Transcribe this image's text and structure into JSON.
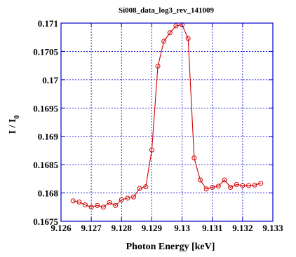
{
  "chart_data": {
    "type": "line",
    "title": "Si008_data_log3_rev_141009",
    "xlabel": "Photon Energy [keV]",
    "ylabel_main": "I / I",
    "ylabel_sub": "0",
    "xlim": [
      9.126,
      9.133
    ],
    "ylim": [
      0.1675,
      0.171
    ],
    "x_ticks": [
      "9.126",
      "9.127",
      "9.128",
      "9.129",
      "9.13",
      "9.131",
      "9.132",
      "9.133"
    ],
    "y_ticks": [
      "0.1675",
      "0.168",
      "0.1685",
      "0.169",
      "0.1695",
      "0.17",
      "0.1705",
      "0.171"
    ],
    "grid": true,
    "series": [
      {
        "color": "#d00000",
        "marker": "circle",
        "x": [
          9.1264,
          9.1266,
          9.1268,
          9.127,
          9.1272,
          9.1274,
          9.1276,
          9.1278,
          9.128,
          9.1282,
          9.1284,
          9.1286,
          9.1288,
          9.129,
          9.1292,
          9.1294,
          9.1296,
          9.1298,
          9.13,
          9.1302,
          9.1304,
          9.1306,
          9.1308,
          9.131,
          9.1312,
          9.1314,
          9.1316,
          9.1318,
          9.132,
          9.1322,
          9.1324,
          9.1326
        ],
        "y": [
          0.16786,
          0.16784,
          0.16779,
          0.16775,
          0.16778,
          0.16775,
          0.16783,
          0.16778,
          0.16788,
          0.16791,
          0.16793,
          0.16808,
          0.16811,
          0.16876,
          0.17024,
          0.17068,
          0.17083,
          0.17095,
          0.17097,
          0.17073,
          0.16862,
          0.16823,
          0.16807,
          0.1681,
          0.16812,
          0.16823,
          0.1681,
          0.16815,
          0.16813,
          0.16813,
          0.16814,
          0.16817
        ]
      }
    ]
  }
}
